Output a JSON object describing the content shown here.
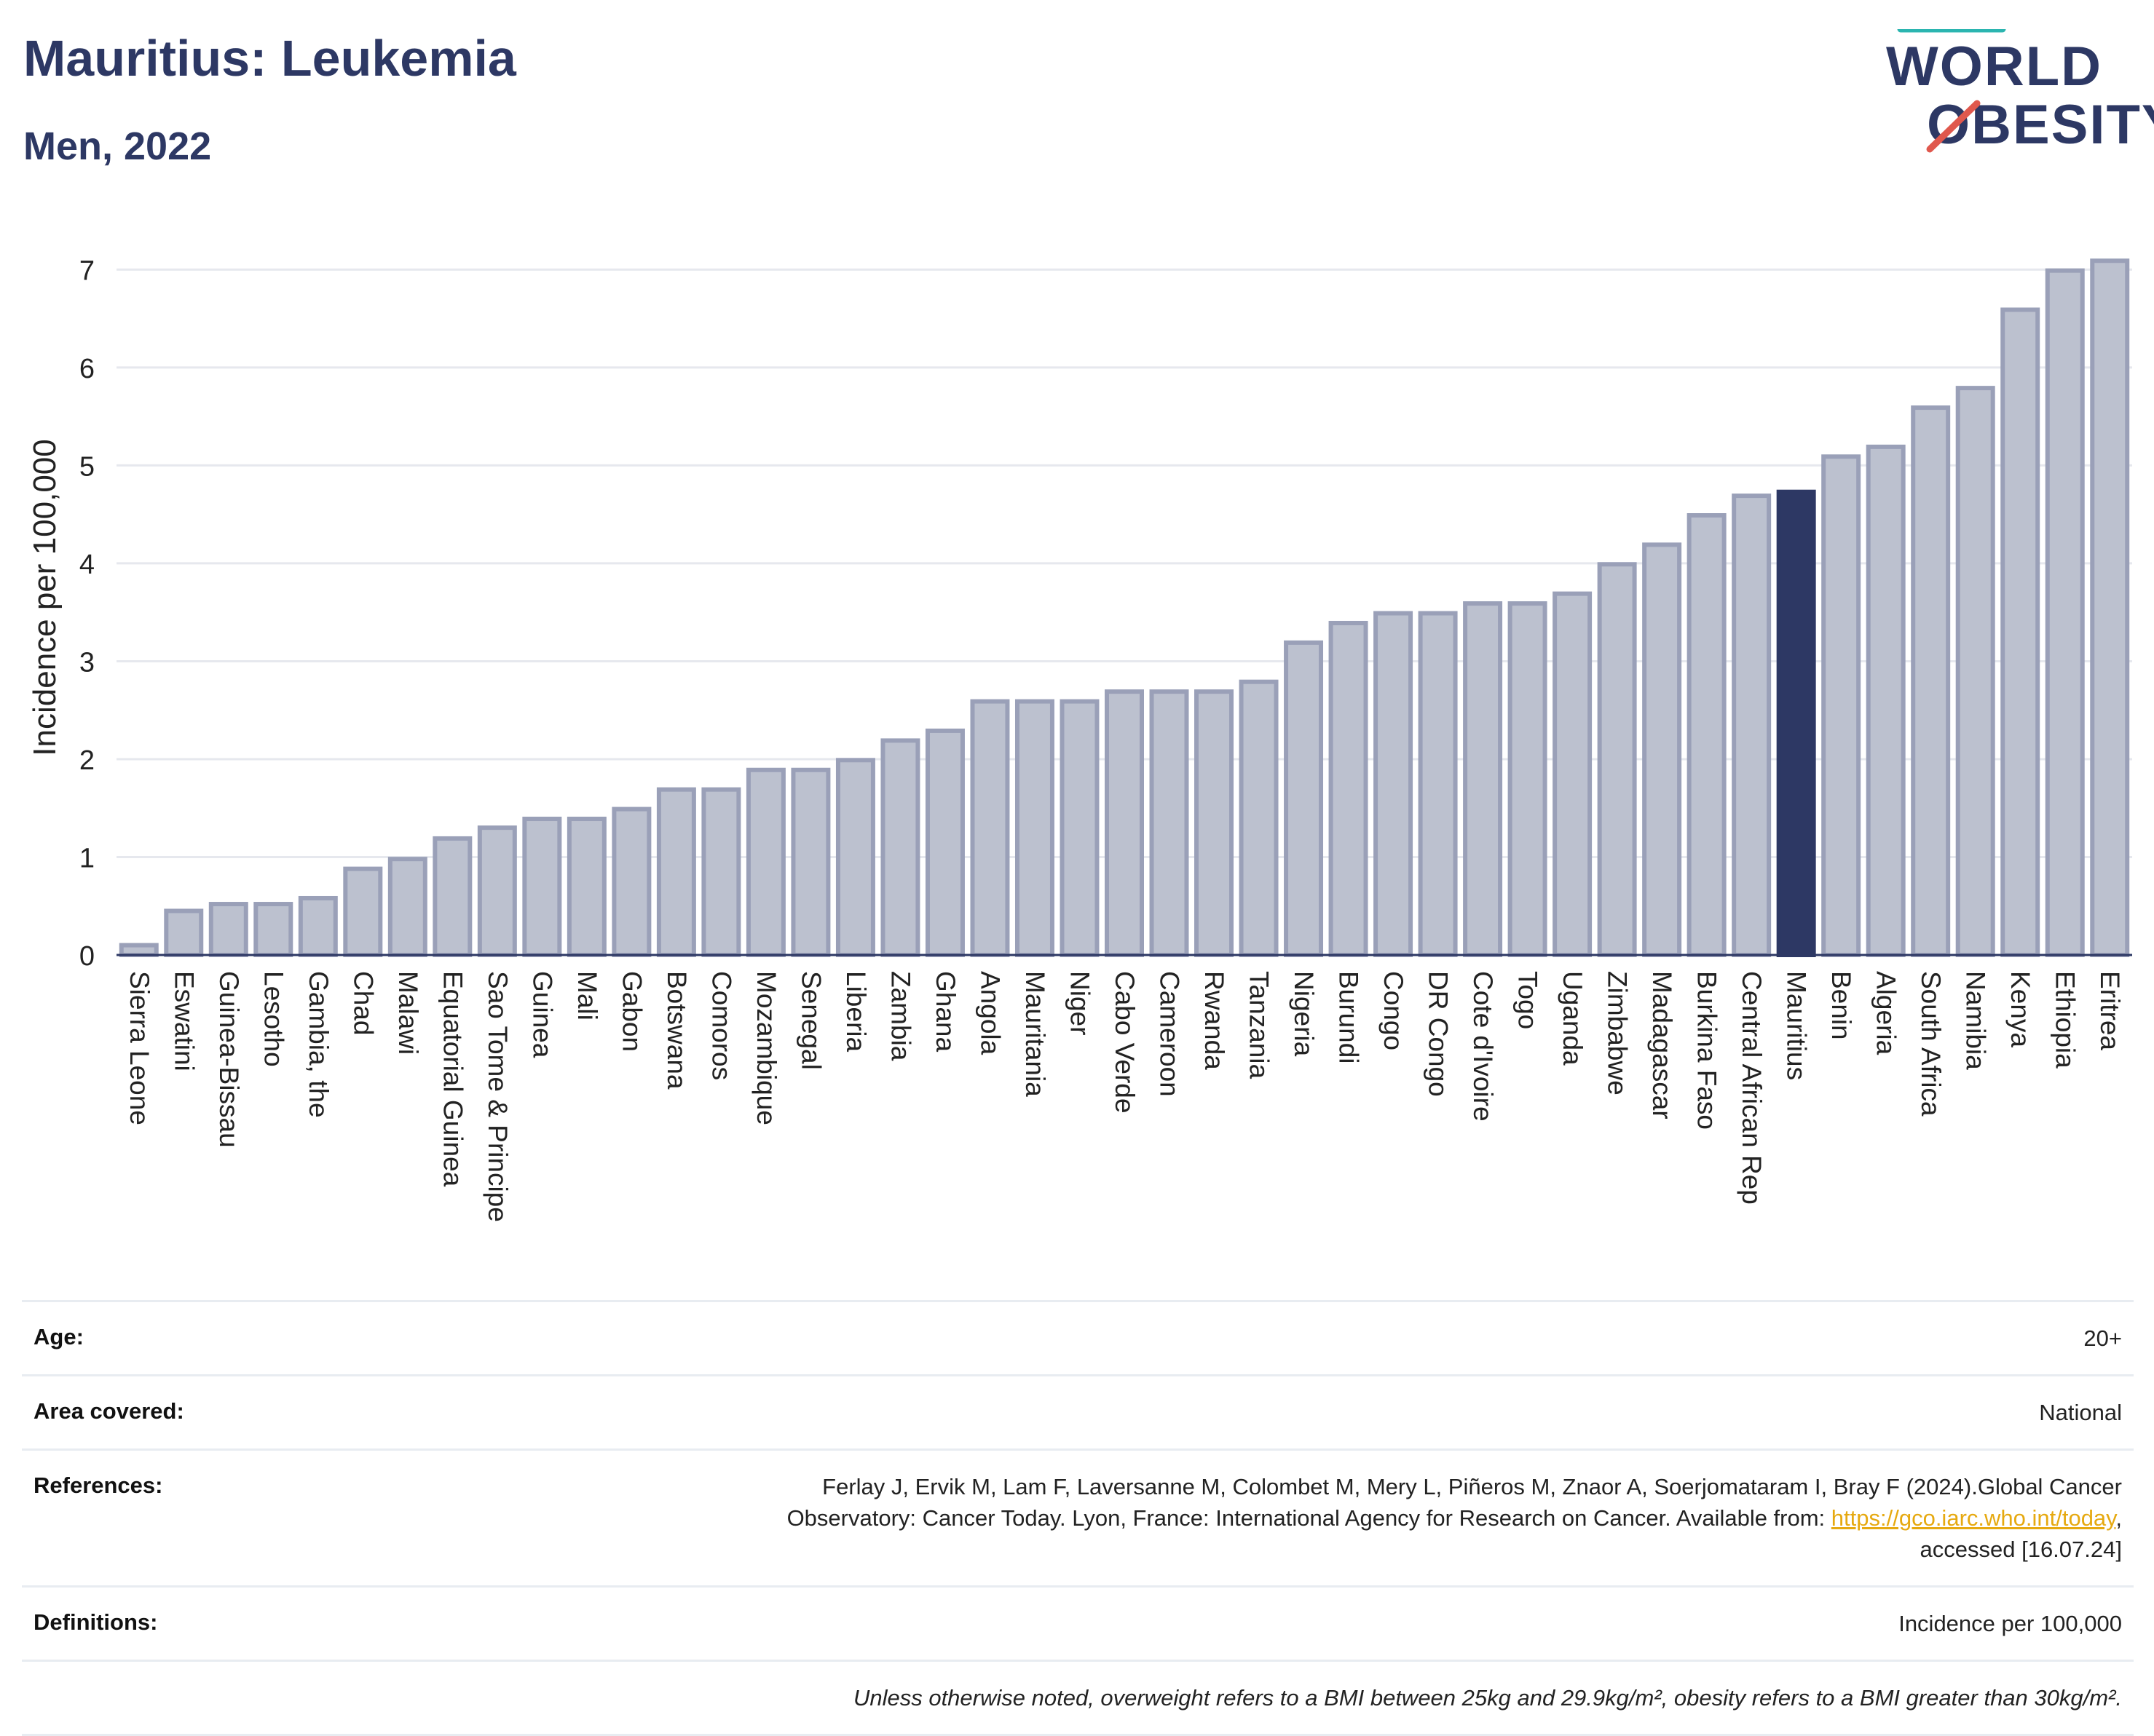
{
  "header": {
    "title": "Mauritius: Leukemia",
    "subtitle": "Men, 2022"
  },
  "logo": {
    "line1": "WORLD",
    "line2": "OBESITY",
    "colors": {
      "text": "#2d3864",
      "slash_teal": "#2bb5b0",
      "slash_red": "#e0584d"
    }
  },
  "chart_data": {
    "type": "bar",
    "ylabel": "Incidence per 100,000",
    "xlabel": "",
    "ylim": [
      0,
      7.3
    ],
    "yticks": [
      0,
      1,
      2,
      3,
      4,
      5,
      6,
      7
    ],
    "grid": true,
    "highlight": "Mauritius",
    "colors": {
      "bar": "#bcc1cf",
      "bar_outline": "#9aa0b8",
      "highlight": "#2d3864",
      "grid": "#e6e8ee",
      "axis": "#2d3864"
    },
    "categories": [
      "Sierra Leone",
      "Eswatini",
      "Guinea-Bissau",
      "Lesotho",
      "Gambia, the",
      "Chad",
      "Malawi",
      "Equatorial Guinea",
      "Sao Tome & Principe",
      "Guinea",
      "Mali",
      "Gabon",
      "Botswana",
      "Comoros",
      "Mozambique",
      "Senegal",
      "Liberia",
      "Zambia",
      "Ghana",
      "Angola",
      "Mauritania",
      "Niger",
      "Cabo Verde",
      "Cameroon",
      "Rwanda",
      "Tanzania",
      "Nigeria",
      "Burundi",
      "Congo",
      "DR Congo",
      "Cote d'Ivoire",
      "Togo",
      "Uganda",
      "Zimbabwe",
      "Madagascar",
      "Burkina Faso",
      "Central African Rep",
      "Mauritius",
      "Benin",
      "Algeria",
      "South Africa",
      "Namibia",
      "Kenya",
      "Ethiopia",
      "Eritrea"
    ],
    "values": [
      0.1,
      0.45,
      0.52,
      0.52,
      0.58,
      0.88,
      0.98,
      1.19,
      1.3,
      1.39,
      1.39,
      1.49,
      1.69,
      1.69,
      1.89,
      1.89,
      1.99,
      2.19,
      2.29,
      2.59,
      2.59,
      2.59,
      2.69,
      2.69,
      2.69,
      2.79,
      3.19,
      3.39,
      3.49,
      3.49,
      3.59,
      3.59,
      3.69,
      3.99,
      4.19,
      4.49,
      4.69,
      4.73,
      5.09,
      5.19,
      5.59,
      5.79,
      6.59,
      6.99,
      7.09
    ]
  },
  "meta": {
    "age_label": "Age:",
    "age_value": "20+",
    "area_label": "Area covered:",
    "area_value": "National",
    "references_label": "References:",
    "references_text_1": "Ferlay J, Ervik M, Lam F, Laversanne M, Colombet M, Mery L, Piñeros M, Znaor A, Soerjomataram I, Bray F (2024).Global Cancer",
    "references_text_2": "Observatory: Cancer Today. Lyon, France: International Agency for Research on Cancer. Available from: ",
    "references_link": "https://gco.iarc.who.int/today",
    "references_text_3": "accessed [16.07.24]",
    "definitions_label": "Definitions:",
    "definitions_value": "Incidence per 100,000",
    "note": "Unless otherwise noted, overweight refers to a BMI between 25kg and 29.9kg/m², obesity refers to a BMI greater than 30kg/m²."
  }
}
